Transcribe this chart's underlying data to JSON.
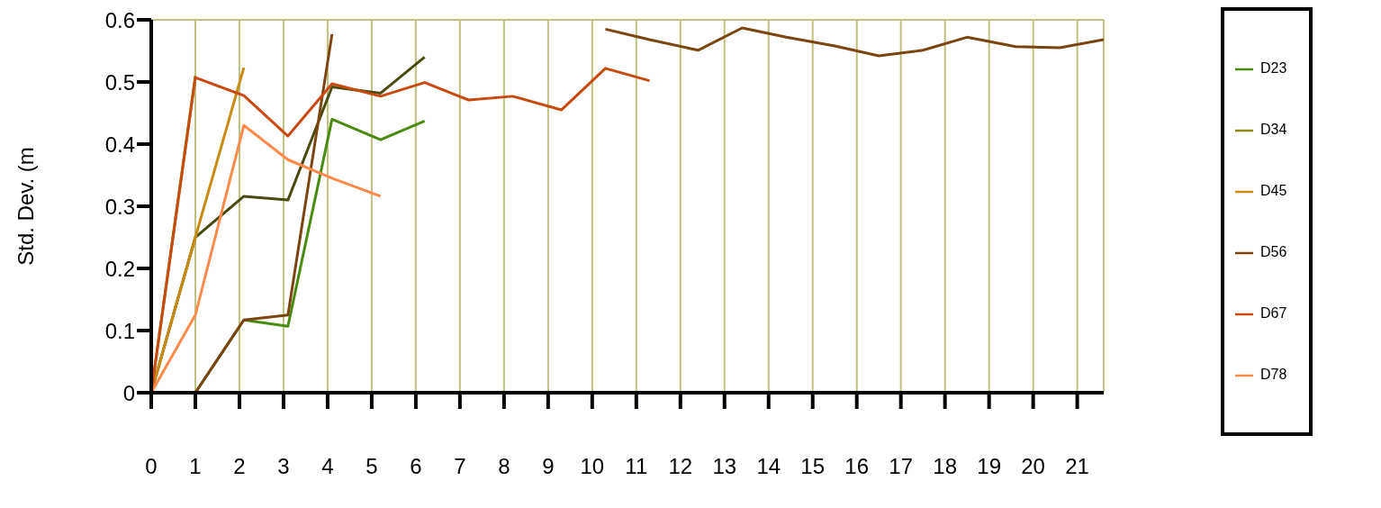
{
  "chart_data": {
    "type": "line",
    "ylabel": "Std. Dev. (m",
    "x": [
      0,
      1,
      2.1,
      3.1,
      4.1,
      5.2,
      6.2,
      7.2,
      8.2,
      9.3,
      10.3,
      11.3,
      12.4,
      13.4,
      14.4,
      15.5,
      16.5,
      17.5,
      18.5,
      19.6,
      20.6,
      21.6
    ],
    "series": [
      {
        "color": "#4a4a10",
        "values": [
          0,
          0.25,
          0.316,
          0.31,
          0.492,
          0.482,
          0.54,
          null,
          null,
          null,
          null,
          null,
          null,
          null,
          null,
          null,
          null,
          null,
          null,
          null,
          null,
          null
        ]
      },
      {
        "name": "D23",
        "color": "#4a8a10",
        "values": [
          0,
          0,
          0.117,
          0.107,
          0.44,
          0.407,
          0.437,
          null,
          null,
          null,
          null,
          null,
          null,
          null,
          null,
          null,
          null,
          null,
          null,
          null,
          null,
          null
        ]
      },
      {
        "name": "D34",
        "color": "#8a8a10",
        "values": [
          0,
          0.51,
          null,
          null,
          null,
          null,
          null,
          null,
          null,
          null,
          null,
          null,
          null,
          null,
          null,
          null,
          null,
          null,
          null,
          null,
          null,
          null
        ]
      },
      {
        "name": "D45",
        "color": "#c88a10",
        "values": [
          0,
          0.25,
          0.523,
          null,
          null,
          null,
          null,
          null,
          null,
          null,
          null,
          null,
          null,
          null,
          null,
          null,
          null,
          null,
          null,
          null,
          null,
          null
        ]
      },
      {
        "name": "D56",
        "color": "#7a4510",
        "values": [
          0,
          0,
          0.117,
          0.125,
          0.577,
          null,
          null,
          null,
          null,
          null,
          0.585,
          0.568,
          0.551,
          0.587,
          0.572,
          0.558,
          0.542,
          0.551,
          0.572,
          0.557,
          0.555,
          0.568
        ]
      },
      {
        "name": "D67",
        "color": "#c84a10",
        "values": [
          0,
          0.507,
          0.478,
          0.413,
          0.497,
          0.477,
          0.499,
          0.471,
          0.477,
          0.455,
          0.522,
          0.502,
          null,
          null,
          null,
          null,
          null,
          null,
          null,
          null,
          null,
          null
        ]
      },
      {
        "name": "D78",
        "color": "#ff8a4a",
        "values": [
          0,
          0.125,
          0.43,
          0.375,
          0.345,
          0.316,
          null,
          null,
          null,
          null,
          null,
          null,
          null,
          null,
          null,
          null,
          null,
          null,
          null,
          null,
          null,
          null
        ]
      }
    ],
    "xlim": [
      0,
      21.6
    ],
    "xticks": [
      0,
      1,
      2,
      3,
      4,
      5,
      6,
      7,
      8,
      9,
      10,
      11,
      12,
      13,
      14,
      15,
      16,
      17,
      18,
      19,
      20,
      21
    ],
    "ylim": [
      0,
      0.6
    ],
    "yticks": [
      0,
      0.1,
      0.2,
      0.3,
      0.4,
      0.5,
      0.6
    ],
    "grid": true,
    "legend": "right"
  }
}
